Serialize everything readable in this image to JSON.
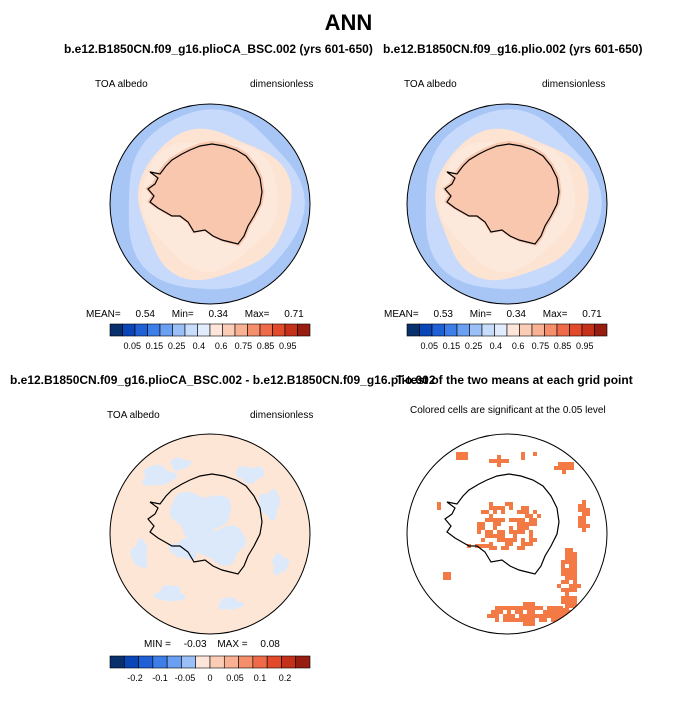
{
  "page_title": "ANN",
  "colors": {
    "blue_scale": [
      "#08306b",
      "#0b46b8",
      "#2060d6",
      "#3d7ee8",
      "#6a9ff2",
      "#9bbff7",
      "#c8dcfb",
      "#e1ecfc"
    ],
    "red_scale": [
      "#fde6d9",
      "#fbcdb6",
      "#f8b192",
      "#f48e6b",
      "#ee6a48",
      "#e14b2c",
      "#c5301b",
      "#971d10",
      "#6b0f08"
    ],
    "ocean_far": "#a7c6f5",
    "ocean_mid": "#c7dafb",
    "ocean_near": "#fde3d2",
    "ice": "#f8c7ae",
    "diff_bg": "#fde6d6",
    "diff_neg": "#dce9fb",
    "sig": "#f47a45"
  },
  "panels": [
    {
      "title": "b.e12.B1850CN.f09_g16.plioCA_BSC.002 (yrs 601-650)",
      "left_label": "TOA albedo",
      "right_label": "dimensionless",
      "stats": {
        "mean_label": "MEAN=",
        "mean": "0.54",
        "min_label": "Min=",
        "min": "0.34",
        "max_label": "Max=",
        "max": "0.71"
      },
      "colorbar_labels": [
        "0.05",
        "0.15",
        "0.25",
        "0.4",
        "0.6",
        "0.75",
        "0.85",
        "0.95"
      ]
    },
    {
      "title": "b.e12.B1850CN.f09_g16.plio.002 (yrs 601-650)",
      "left_label": "TOA albedo",
      "right_label": "dimensionless",
      "stats": {
        "mean_label": "MEAN=",
        "mean": "0.53",
        "min_label": "Min=",
        "min": "0.34",
        "max_label": "Max=",
        "max": "0.71"
      },
      "colorbar_labels": [
        "0.05",
        "0.15",
        "0.25",
        "0.4",
        "0.6",
        "0.75",
        "0.85",
        "0.95"
      ]
    },
    {
      "title": "b.e12.B1850CN.f09_g16.plioCA_BSC.002 - b.e12.B1850CN.f09_g16.plio.002",
      "left_label": "TOA albedo",
      "right_label": "dimensionless",
      "stats": {
        "min_label": "MIN =",
        "min": "-0.03",
        "max_label": "MAX =",
        "max": "0.08"
      },
      "colorbar_labels": [
        "-0.2",
        "-0.1",
        "-0.05",
        "0",
        "0.05",
        "0.1",
        "0.2"
      ]
    },
    {
      "title": "T-test of the two means at each grid point",
      "subtitle": "Colored cells are significant at the 0.05 level"
    }
  ],
  "chart_data": [
    {
      "type": "heatmap",
      "projection": "south-polar-stereographic",
      "variable": "TOA albedo",
      "units": "dimensionless",
      "mean": 0.54,
      "min": 0.34,
      "max": 0.71,
      "levels": [
        0.05,
        0.1,
        0.15,
        0.2,
        0.25,
        0.3,
        0.4,
        0.5,
        0.6,
        0.65,
        0.7,
        0.75,
        0.8,
        0.85,
        0.9,
        0.95
      ]
    },
    {
      "type": "heatmap",
      "projection": "south-polar-stereographic",
      "variable": "TOA albedo",
      "units": "dimensionless",
      "mean": 0.53,
      "min": 0.34,
      "max": 0.71,
      "levels": [
        0.05,
        0.1,
        0.15,
        0.2,
        0.25,
        0.3,
        0.4,
        0.5,
        0.6,
        0.65,
        0.7,
        0.75,
        0.8,
        0.85,
        0.9,
        0.95
      ]
    },
    {
      "type": "heatmap",
      "projection": "south-polar-stereographic",
      "variable": "TOA albedo difference",
      "min": -0.03,
      "max": 0.08,
      "levels": [
        -0.2,
        -0.15,
        -0.1,
        -0.07,
        -0.05,
        -0.02,
        0,
        0.02,
        0.05,
        0.07,
        0.1,
        0.15,
        0.2
      ]
    },
    {
      "type": "heatmap",
      "projection": "south-polar-stereographic",
      "variable": "t-test significance",
      "significance_level": 0.05
    }
  ]
}
